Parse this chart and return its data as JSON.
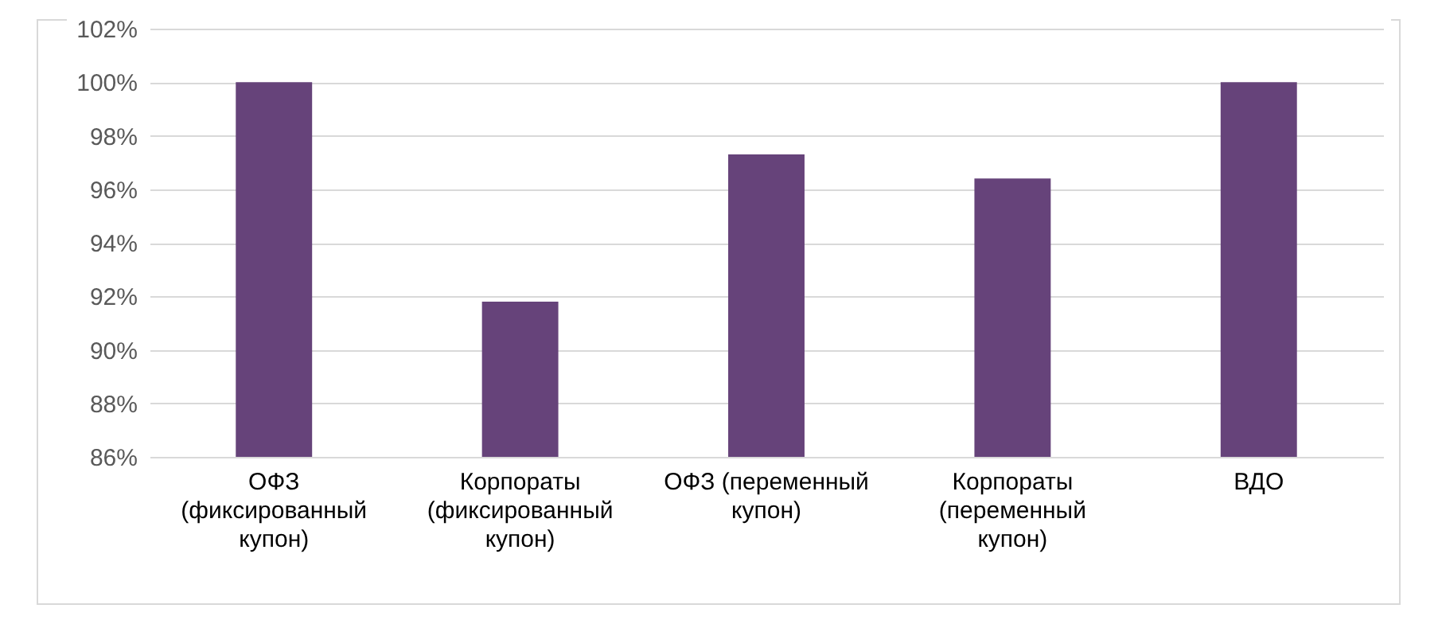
{
  "chart_data": {
    "type": "bar",
    "categories": [
      "ОФЗ (фиксированный купон)",
      "Корпораты (фиксированный купон)",
      "ОФЗ (переменный купон)",
      "Корпораты (переменный купон)",
      "ВДО"
    ],
    "values": [
      100,
      91.8,
      97.3,
      96.4,
      100
    ],
    "color": "#66437a",
    "ylim": [
      86,
      102
    ],
    "yticks": [
      {
        "value": 86,
        "label": "86%"
      },
      {
        "value": 88,
        "label": "88%"
      },
      {
        "value": 90,
        "label": "90%"
      },
      {
        "value": 92,
        "label": "92%"
      },
      {
        "value": 94,
        "label": "94%"
      },
      {
        "value": 96,
        "label": "96%"
      },
      {
        "value": 98,
        "label": "98%"
      },
      {
        "value": 100,
        "label": "100%"
      },
      {
        "value": 102,
        "label": "102%"
      }
    ],
    "grid": "y"
  }
}
